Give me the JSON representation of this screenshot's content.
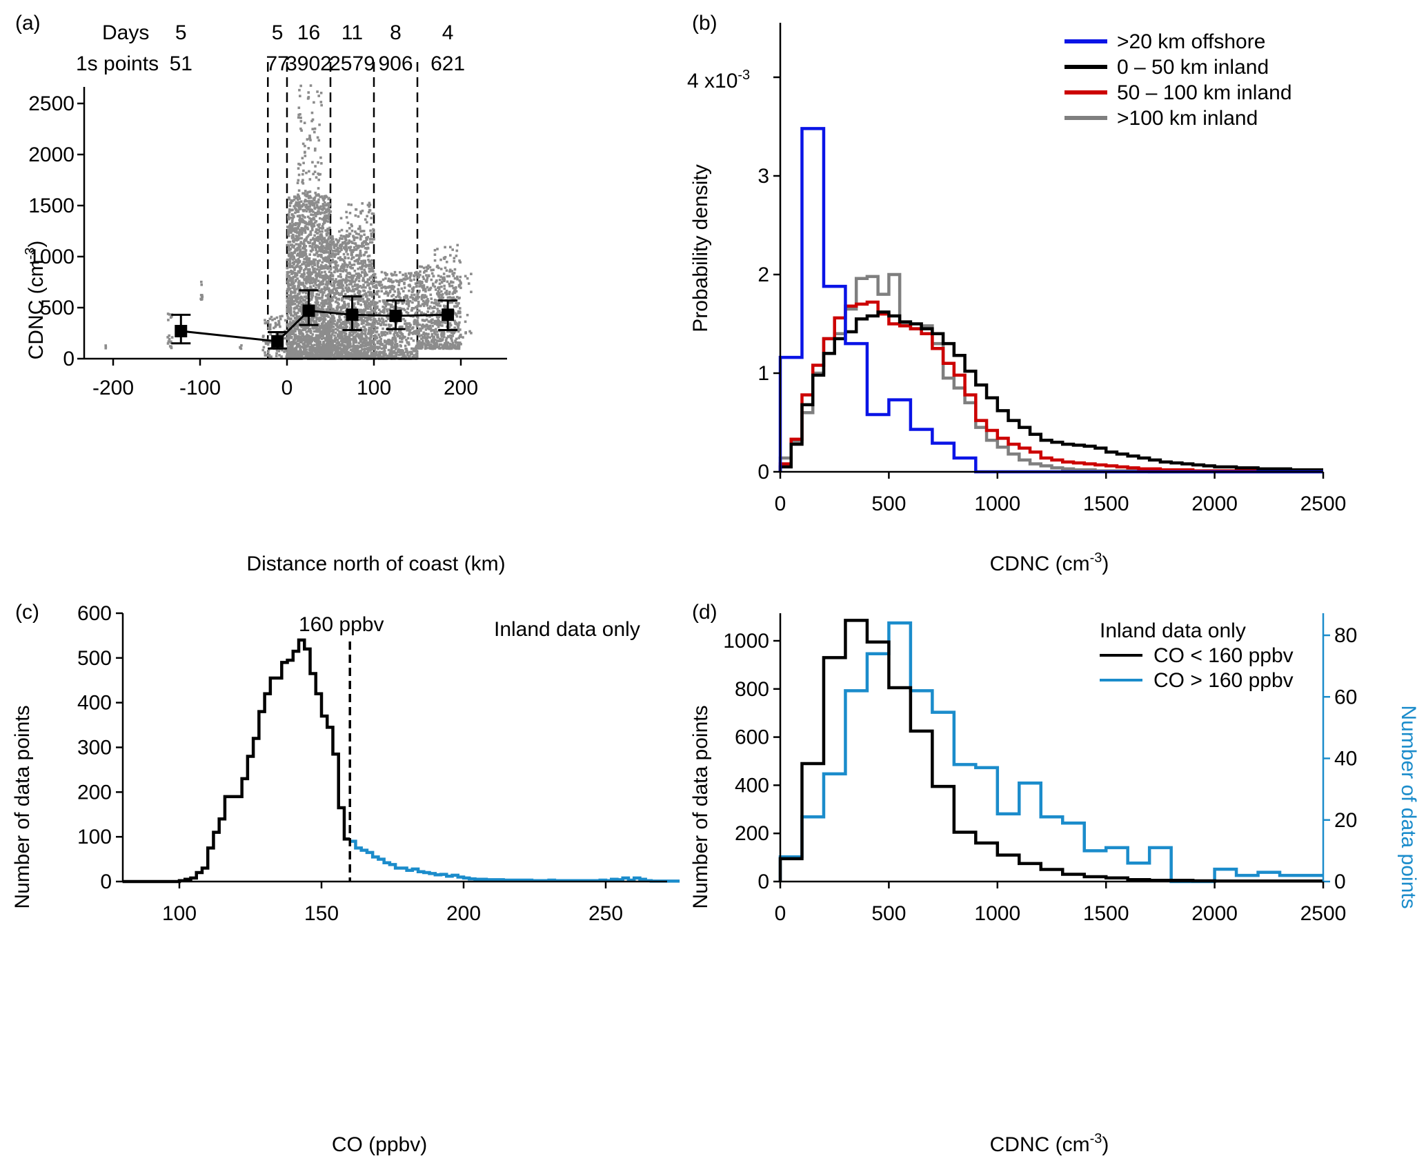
{
  "colors": {
    "scatter_gray": "#8c8c8c",
    "offshore_blue": "#0a14e6",
    "red": "#cc0000",
    "gray": "#7f7f7f",
    "black": "#000000",
    "light_blue": "#1b8ccb"
  },
  "chart_data": [
    {
      "panel": "(a)",
      "type": "scatter",
      "xlabel": "Distance north of coast (km)",
      "ylabel": "CDNC (cm",
      "ylabel_sup": "-3",
      "ylabel_close": ")",
      "xlim": [
        -225,
        250
      ],
      "ylim": [
        0,
        2650
      ],
      "xticks": [
        -200,
        -100,
        0,
        100,
        200
      ],
      "yticks": [
        0,
        500,
        1000,
        1500,
        2000,
        2500
      ],
      "boundaries": [
        -22,
        0,
        50,
        100,
        150
      ],
      "header_row_labels": [
        "Days",
        "1s points"
      ],
      "header_columns": [
        {
          "x": -122,
          "days": "5",
          "points": "51"
        },
        {
          "x": -11,
          "days": "5",
          "points": "77"
        },
        {
          "x": 25,
          "days": "16",
          "points": "3902"
        },
        {
          "x": 75,
          "days": "11",
          "points": "2579"
        },
        {
          "x": 125,
          "days": "8",
          "points": "906"
        },
        {
          "x": 185,
          "days": "4",
          "points": "621"
        }
      ],
      "means": {
        "x": [
          -122,
          -11,
          25,
          75,
          125,
          185
        ],
        "y": [
          270,
          170,
          470,
          430,
          420,
          430
        ],
        "err_low": [
          150,
          100,
          330,
          280,
          290,
          280
        ],
        "err_high": [
          430,
          260,
          670,
          610,
          570,
          570
        ]
      },
      "scatter_clusters": [
        {
          "x0": -210,
          "x1": -208,
          "y0": 100,
          "y1": 130,
          "n": 3
        },
        {
          "x0": -138,
          "x1": -132,
          "y0": 80,
          "y1": 520,
          "n": 18
        },
        {
          "x0": -100,
          "x1": -97,
          "y0": 580,
          "y1": 770,
          "n": 10
        },
        {
          "x0": -55,
          "x1": -52,
          "y0": 100,
          "y1": 200,
          "n": 4
        },
        {
          "x0": -28,
          "x1": 0,
          "y0": 20,
          "y1": 420,
          "n": 90
        },
        {
          "x0": 0,
          "x1": 50,
          "y0": 0,
          "y1": 1600,
          "n": 2200
        },
        {
          "x0": 12,
          "x1": 40,
          "y0": 1600,
          "y1": 2680,
          "n": 90
        },
        {
          "x0": 50,
          "x1": 100,
          "y0": 0,
          "y1": 1200,
          "n": 1400
        },
        {
          "x0": 60,
          "x1": 100,
          "y0": 1200,
          "y1": 1530,
          "n": 60
        },
        {
          "x0": 100,
          "x1": 150,
          "y0": 0,
          "y1": 850,
          "n": 650
        },
        {
          "x0": 150,
          "x1": 200,
          "y0": 100,
          "y1": 920,
          "n": 600
        },
        {
          "x0": 170,
          "x1": 200,
          "y0": 920,
          "y1": 1140,
          "n": 20
        },
        {
          "x0": 202,
          "x1": 212,
          "y0": 200,
          "y1": 900,
          "n": 12
        }
      ]
    },
    {
      "panel": "(b)",
      "type": "line",
      "xlabel": "CDNC (cm",
      "xlabel_sup": "-3",
      "xlabel_close": ")",
      "ylabel": "Probability density",
      "y_multiplier_label": "4 x10",
      "y_multiplier_sup": "-3",
      "xlim": [
        0,
        2500
      ],
      "ylim": [
        0,
        4.5
      ],
      "xticks": [
        0,
        500,
        1000,
        1500,
        2000,
        2500
      ],
      "yticks": [
        0,
        1,
        2,
        3,
        4
      ],
      "ytick_labels": [
        "0",
        "1",
        "2",
        "3",
        ""
      ],
      "bin_width": 50,
      "legend": ">20 km offshore|0 – 50 km inland|50 – 100 km inland|>100 km inland",
      "series": [
        {
          "name": ">20 km offshore",
          "color": "#0a14e6",
          "bin_edges": [
            0,
            100,
            200,
            300,
            400,
            500,
            600,
            700,
            800,
            900,
            2500
          ],
          "values": [
            1.16,
            3.48,
            1.88,
            1.3,
            0.58,
            0.73,
            0.43,
            0.29,
            0.14,
            0.0
          ]
        },
        {
          "name": "0 – 50 km inland",
          "color": "#000000",
          "values": [
            0.05,
            0.28,
            0.68,
            0.98,
            1.2,
            1.35,
            1.42,
            1.55,
            1.58,
            1.62,
            1.58,
            1.52,
            1.5,
            1.45,
            1.4,
            1.3,
            1.18,
            1.02,
            0.88,
            0.75,
            0.62,
            0.52,
            0.45,
            0.38,
            0.32,
            0.3,
            0.28,
            0.27,
            0.26,
            0.24,
            0.2,
            0.18,
            0.16,
            0.14,
            0.12,
            0.1,
            0.09,
            0.08,
            0.07,
            0.06,
            0.05,
            0.05,
            0.04,
            0.04,
            0.03,
            0.03,
            0.03,
            0.02,
            0.02,
            0.02
          ]
        },
        {
          "name": "50 – 100 km inland",
          "color": "#cc0000",
          "values": [
            0.08,
            0.33,
            0.78,
            1.08,
            1.35,
            1.56,
            1.68,
            1.7,
            1.72,
            1.6,
            1.5,
            1.48,
            1.45,
            1.4,
            1.25,
            1.1,
            0.98,
            0.78,
            0.52,
            0.42,
            0.34,
            0.28,
            0.24,
            0.2,
            0.14,
            0.12,
            0.1,
            0.09,
            0.08,
            0.07,
            0.06,
            0.05,
            0.04,
            0.03,
            0.03,
            0.02,
            0.02,
            0.02,
            0.01,
            0.01,
            0.01,
            0.01,
            0.01,
            0.01,
            0.01,
            0.01,
            0.01,
            0.01,
            0.01,
            0.01
          ]
        },
        {
          "name": ">100 km inland",
          "color": "#7f7f7f",
          "values": [
            0.14,
            0.3,
            0.6,
            1.0,
            1.35,
            1.4,
            1.65,
            1.96,
            1.98,
            1.8,
            2.0,
            1.5,
            1.45,
            1.48,
            1.3,
            0.95,
            0.85,
            0.7,
            0.45,
            0.32,
            0.25,
            0.18,
            0.12,
            0.08,
            0.06,
            0.04,
            0.03,
            0.02,
            0.02,
            0.01,
            0.01,
            0.01,
            0.01,
            0.01,
            0.0,
            0.0,
            0.0,
            0.0,
            0.0,
            0.0,
            0.0,
            0.0,
            0.0,
            0.0,
            0.0,
            0.0,
            0.0,
            0.0,
            0.0,
            0.0
          ]
        }
      ]
    },
    {
      "panel": "(c)",
      "type": "line",
      "xlabel": "CO (ppbv)",
      "ylabel": "Number of data points",
      "annotation": "Inland data only",
      "threshold_label": "160 ppbv",
      "threshold": 160,
      "xlim": [
        80,
        275
      ],
      "ylim": [
        0,
        600
      ],
      "xticks": [
        100,
        150,
        200,
        250
      ],
      "yticks": [
        0,
        100,
        200,
        300,
        400,
        500,
        600
      ],
      "bin_width": 2,
      "bin_start": 80,
      "series": [
        {
          "name": "CO < 160 ppbv",
          "color": "#000000",
          "values": [
            0,
            0,
            0,
            0,
            0,
            0,
            0,
            0,
            0,
            0,
            2,
            5,
            8,
            20,
            30,
            75,
            110,
            140,
            190,
            190,
            190,
            230,
            280,
            320,
            380,
            420,
            455,
            455,
            490,
            495,
            515,
            540,
            520,
            465,
            420,
            370,
            345,
            285,
            165,
            95
          ]
        },
        {
          "name": "CO > 160 ppbv",
          "color": "#1b8ccb",
          "values": [
            90,
            75,
            70,
            65,
            55,
            50,
            42,
            38,
            30,
            30,
            25,
            28,
            22,
            20,
            18,
            15,
            16,
            12,
            14,
            10,
            8,
            6,
            5,
            5,
            4,
            4,
            4,
            3,
            3,
            3,
            3,
            3,
            2,
            2,
            2,
            3,
            2,
            2,
            2,
            2,
            2,
            2,
            2,
            2,
            3,
            2,
            5,
            4,
            8,
            3,
            8,
            5,
            2,
            1,
            1,
            1,
            1,
            1
          ]
        }
      ]
    },
    {
      "panel": "(d)",
      "type": "line",
      "xlabel": "CDNC (cm",
      "xlabel_sup": "-3",
      "xlabel_close": ")",
      "ylabel": "Number of data points",
      "ylabel_right": "Number of data points",
      "legend_title": "Inland data only",
      "xlim": [
        0,
        2500
      ],
      "ylim": [
        0,
        1090
      ],
      "ylim_right": [
        0,
        84
      ],
      "xticks": [
        0,
        500,
        1000,
        1500,
        2000,
        2500
      ],
      "yticks": [
        0,
        200,
        400,
        600,
        800,
        1000
      ],
      "yticks_right": [
        0,
        20,
        40,
        60,
        80
      ],
      "bin_width": 100,
      "series": [
        {
          "name": "CO < 160 ppbv",
          "color": "#000000",
          "axis": "left",
          "values": [
            95,
            490,
            930,
            1085,
            995,
            805,
            625,
            395,
            205,
            160,
            110,
            75,
            50,
            30,
            20,
            15,
            8,
            5,
            5,
            3,
            2,
            2,
            2,
            2,
            2
          ]
        },
        {
          "name": "CO > 160 ppbv",
          "color": "#1b8ccb",
          "axis": "right",
          "values": [
            8,
            21,
            35,
            62,
            74,
            84,
            62,
            55,
            38,
            37,
            22,
            32,
            21,
            19,
            10,
            11,
            6,
            11,
            0,
            0,
            4,
            2,
            3,
            2,
            2
          ]
        }
      ]
    }
  ]
}
